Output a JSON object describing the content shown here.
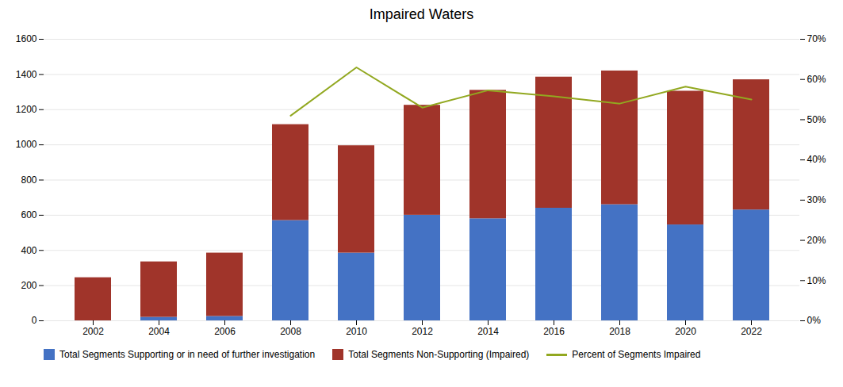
{
  "chart_data": {
    "type": "bar",
    "title": "Impaired Waters",
    "categories": [
      "2002",
      "2004",
      "2006",
      "2008",
      "2010",
      "2012",
      "2014",
      "2016",
      "2018",
      "2020",
      "2022"
    ],
    "stacked": true,
    "grid": true,
    "legend": "bottom",
    "ylim": [
      0,
      1600
    ],
    "yticks": [
      0,
      200,
      400,
      600,
      800,
      1000,
      1200,
      1400,
      1600
    ],
    "y2lim": [
      0.0,
      0.7
    ],
    "y2ticks": [
      {
        "value": 0.0,
        "label": "0%"
      },
      {
        "value": 0.1,
        "label": "10%"
      },
      {
        "value": 0.2,
        "label": "20%"
      },
      {
        "value": 0.3,
        "label": "30%"
      },
      {
        "value": 0.4,
        "label": "40%"
      },
      {
        "value": 0.5,
        "label": "50%"
      },
      {
        "value": 0.6,
        "label": "60%"
      },
      {
        "value": 0.7,
        "label": "70%"
      }
    ],
    "series": [
      {
        "name": "Total Segments Supporting or in need of further investigation",
        "type": "bar",
        "color": "#4472C4",
        "values": [
          0,
          20,
          25,
          570,
          385,
          600,
          580,
          640,
          660,
          545,
          630
        ]
      },
      {
        "name": "Total Segments Non-Supporting (Impaired)",
        "type": "bar",
        "color": "#A0342A",
        "values": [
          245,
          315,
          360,
          545,
          610,
          625,
          730,
          745,
          760,
          760,
          740
        ]
      },
      {
        "name": "Percent of Segments Impaired",
        "type": "line",
        "axis": "y2",
        "color": "#92A820",
        "values": [
          null,
          null,
          null,
          0.51,
          0.63,
          0.53,
          0.573,
          0.558,
          0.54,
          0.582,
          0.55
        ]
      }
    ]
  }
}
